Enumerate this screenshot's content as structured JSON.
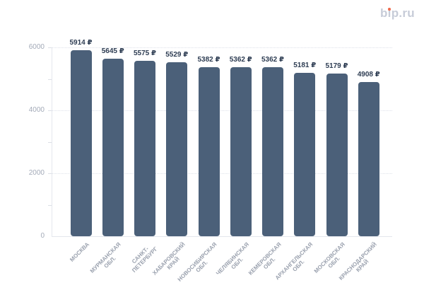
{
  "logo": {
    "text": "bip.ru",
    "text_color": "#c7ccd8",
    "accent_dot_color": "#ee6a4d"
  },
  "chart_data": {
    "type": "bar",
    "title": "",
    "xlabel": "",
    "ylabel": "",
    "categories": [
      "МОСКВА",
      "МУРМАНСКАЯ ОБЛ.",
      "САНКТ-ПЕТЕРБУРГ",
      "ХАБАРОВСКИЙ КРАЙ",
      "НОВОСИБИРСКАЯ ОБЛ.",
      "ЧЕЛЯБИНСКАЯ ОБЛ.",
      "КЕМЕРОВСКАЯ ОБЛ.",
      "АРХАНГЕЛЬСКАЯ ОБЛ.",
      "МОСКОВСКАЯ ОБЛ.",
      "КРАСНОДАРСКИЙ КРАЙ"
    ],
    "category_lines": [
      [
        "МОСКВА"
      ],
      [
        "МУРМАНСКАЯ",
        "ОБЛ."
      ],
      [
        "САНКТ-",
        "ПЕТЕРБУРГ"
      ],
      [
        "ХАБАРОВСКИЙ",
        "КРАЙ"
      ],
      [
        "НОВОСИБИРСКАЯ",
        "ОБЛ."
      ],
      [
        "ЧЕЛЯБИНСКАЯ",
        "ОБЛ."
      ],
      [
        "КЕМЕРОВСКАЯ",
        "ОБЛ."
      ],
      [
        "АРХАНГЕЛЬСКАЯ",
        "ОБЛ."
      ],
      [
        "МОСКОВСКАЯ",
        "ОБЛ."
      ],
      [
        "КРАСНОДАРСКИЙ",
        "КРАЙ"
      ]
    ],
    "values": [
      5914,
      5645,
      5575,
      5529,
      5382,
      5362,
      5362,
      5181,
      5179,
      4908
    ],
    "value_labels": [
      "5914 ₽",
      "5645 ₽",
      "5575 ₽",
      "5529 ₽",
      "5382 ₽",
      "5362 ₽",
      "5362 ₽",
      "5181 ₽",
      "5179 ₽",
      "4908 ₽"
    ],
    "value_suffix": " ₽",
    "ylim": [
      0,
      6000
    ],
    "yticks": [
      0,
      2000,
      4000,
      6000
    ],
    "minor_yticks": [
      1000,
      3000,
      5000
    ],
    "grid": "horizontal dotted at 2000/4000/6000",
    "legend": "none",
    "bar_color": "#4b6079",
    "value_label_color": "#2d3c52",
    "axis_label_color": "#a3aab8"
  }
}
